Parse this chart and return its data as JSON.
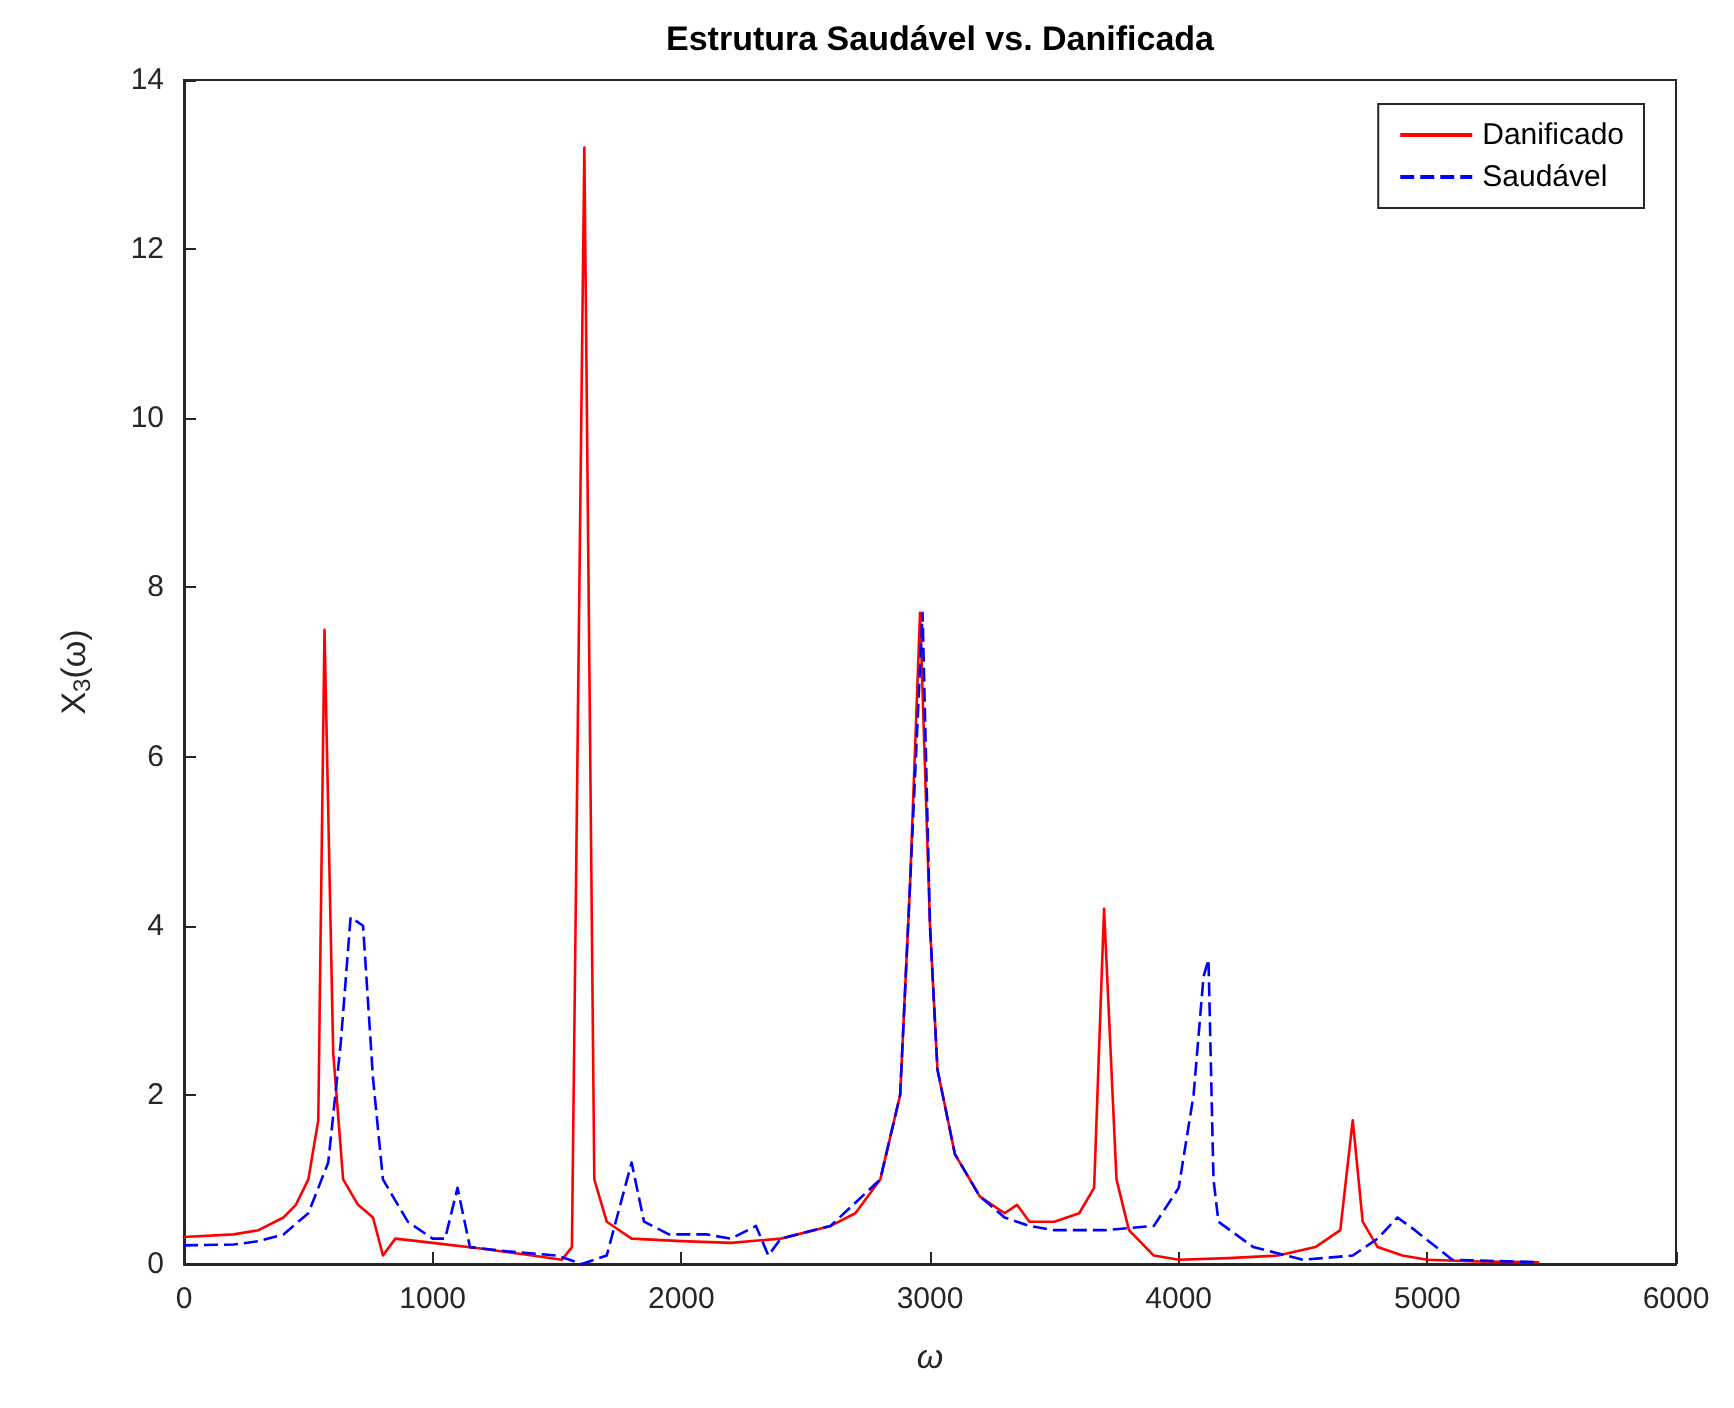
{
  "chart_data": {
    "type": "line",
    "title": "Estrutura Saudável vs. Danificada",
    "xlabel": "ω",
    "ylabel": "X$_{3}$(ω)",
    "xlim": [
      0,
      6000
    ],
    "xticks": [
      0,
      1000,
      2000,
      3000,
      4000,
      5000,
      6000
    ],
    "ylim": [
      0,
      14
    ],
    "yticks": [
      0,
      2,
      4,
      6,
      8,
      10,
      12,
      14
    ],
    "grid": false,
    "legend": "top right",
    "marker": "none",
    "series": [
      {
        "name": "Danificado",
        "color": "#ff0000",
        "line_style": "solid",
        "x": [
          0,
          200,
          300,
          400,
          450,
          500,
          540,
          565,
          600,
          640,
          700,
          760,
          800,
          850,
          1000,
          1200,
          1400,
          1520,
          1560,
          1610,
          1650,
          1700,
          1800,
          2000,
          2200,
          2400,
          2600,
          2700,
          2800,
          2880,
          2920,
          2960,
          3000,
          3030,
          3100,
          3200,
          3300,
          3350,
          3400,
          3500,
          3600,
          3660,
          3700,
          3750,
          3800,
          3900,
          4000,
          4200,
          4400,
          4550,
          4650,
          4700,
          4740,
          4800,
          4900,
          5000,
          5200,
          5450
        ],
        "values": [
          0.32,
          0.35,
          0.4,
          0.55,
          0.7,
          1.0,
          1.7,
          7.5,
          2.5,
          1.0,
          0.7,
          0.55,
          0.1,
          0.3,
          0.25,
          0.18,
          0.1,
          0.05,
          0.2,
          13.2,
          1.0,
          0.5,
          0.3,
          0.27,
          0.25,
          0.3,
          0.45,
          0.6,
          1.0,
          2.0,
          4.5,
          7.7,
          4.0,
          2.3,
          1.3,
          0.8,
          0.6,
          0.7,
          0.5,
          0.5,
          0.6,
          0.9,
          4.2,
          1.0,
          0.4,
          0.1,
          0.05,
          0.07,
          0.1,
          0.2,
          0.4,
          1.7,
          0.5,
          0.2,
          0.1,
          0.05,
          0.03,
          0.02
        ]
      },
      {
        "name": "Saudável",
        "color": "#0000ff",
        "line_style": "dashed",
        "x": [
          0,
          200,
          300,
          400,
          500,
          580,
          630,
          670,
          720,
          760,
          800,
          900,
          1000,
          1050,
          1100,
          1150,
          1300,
          1500,
          1600,
          1700,
          1800,
          1850,
          1950,
          2100,
          2200,
          2300,
          2350,
          2400,
          2600,
          2800,
          2880,
          2920,
          2970,
          3000,
          3030,
          3100,
          3200,
          3300,
          3400,
          3500,
          3700,
          3900,
          4000,
          4060,
          4100,
          4120,
          4140,
          4160,
          4300,
          4500,
          4700,
          4800,
          4880,
          4950,
          5100,
          5450
        ],
        "values": [
          0.22,
          0.23,
          0.27,
          0.35,
          0.6,
          1.2,
          2.6,
          4.1,
          4.0,
          2.2,
          1.0,
          0.5,
          0.3,
          0.3,
          0.9,
          0.2,
          0.15,
          0.1,
          0.0,
          0.1,
          1.2,
          0.5,
          0.35,
          0.35,
          0.3,
          0.45,
          0.1,
          0.3,
          0.45,
          1.0,
          2.0,
          4.5,
          7.7,
          4.0,
          2.3,
          1.3,
          0.8,
          0.55,
          0.45,
          0.4,
          0.4,
          0.45,
          0.9,
          2.0,
          3.4,
          3.6,
          1.0,
          0.5,
          0.2,
          0.05,
          0.1,
          0.3,
          0.55,
          0.4,
          0.05,
          0.02
        ]
      }
    ]
  }
}
